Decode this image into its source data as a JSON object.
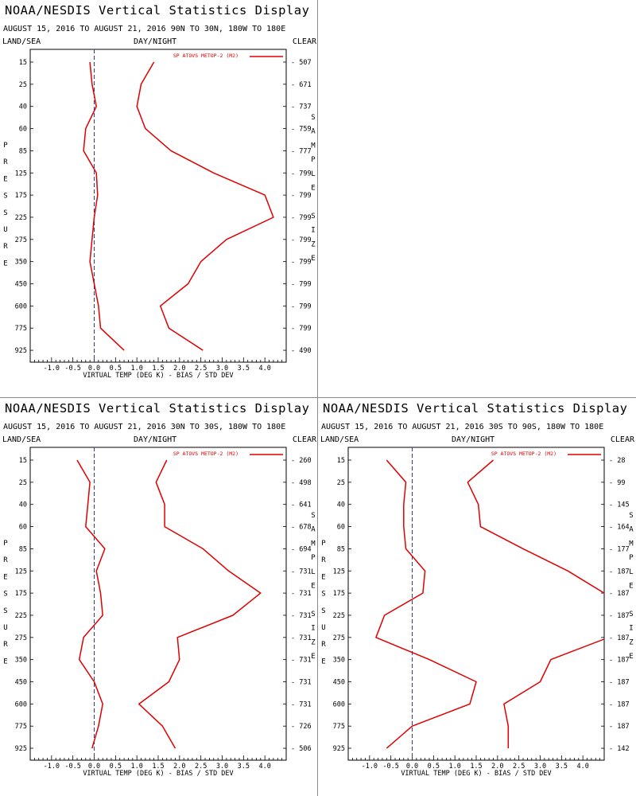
{
  "layout_labels": {
    "land_sea": "LAND/SEA",
    "day_night": "DAY/NIGHT",
    "clear": "CLEAR",
    "pressure_axis_letters": [
      "P",
      "R",
      "E",
      "S",
      "S",
      "U",
      "R",
      "E"
    ],
    "sample_size_letters": [
      "S",
      "A",
      "M",
      "P",
      "L",
      "E",
      "",
      "S",
      "I",
      "Z",
      "E"
    ]
  },
  "colors": {
    "series": "#e00000",
    "zero_line": "#3a3a8a",
    "axis": "#000000"
  },
  "chart_data": [
    {
      "type": "line",
      "title": "NOAA/NESDIS Vertical Statistics Display",
      "subtitle": "AUGUST 15, 2016 TO AUGUST 21, 2016  90N TO 30N, 180W TO 180E",
      "xlabel": "VIRTUAL TEMP (DEG K) - BIAS / STD DEV",
      "ylabel": "PRESSURE",
      "xlim": [
        -1.5,
        4.5
      ],
      "x_ticks": [
        "-1.0",
        "-0.5",
        "0.0",
        "0.5",
        "1.0",
        "1.5",
        "2.0",
        "2.5",
        "3.0",
        "3.5",
        "4.0"
      ],
      "pressure_levels": [
        "15",
        "25",
        "40",
        "60",
        "85",
        "125",
        "175",
        "225",
        "275",
        "350",
        "450",
        "600",
        "775",
        "925"
      ],
      "sample_size": [
        "507",
        "671",
        "737",
        "759",
        "777",
        "799",
        "799",
        "799",
        "799",
        "799",
        "799",
        "799",
        "799",
        "490"
      ],
      "legend": "SP ATOVS METOP-2 (M2)",
      "series": [
        {
          "name": "bias",
          "values": [
            -0.1,
            -0.05,
            0.05,
            -0.2,
            -0.25,
            0.05,
            0.08,
            0.0,
            -0.05,
            -0.1,
            0.0,
            0.1,
            0.15,
            0.7
          ]
        },
        {
          "name": "std dev",
          "values": [
            1.4,
            1.1,
            1.0,
            1.2,
            1.8,
            2.8,
            4.0,
            4.2,
            3.1,
            2.5,
            2.2,
            1.55,
            1.75,
            2.55
          ]
        }
      ]
    },
    {
      "type": "line",
      "title": "NOAA/NESDIS Vertical Statistics Display",
      "subtitle": "AUGUST 15, 2016 TO AUGUST 21, 2016  30N TO 30S, 180W TO 180E",
      "xlabel": "VIRTUAL TEMP (DEG K) - BIAS / STD DEV",
      "ylabel": "PRESSURE",
      "xlim": [
        -1.5,
        4.5
      ],
      "x_ticks": [
        "-1.0",
        "-0.5",
        "0.0",
        "0.5",
        "1.0",
        "1.5",
        "2.0",
        "2.5",
        "3.0",
        "3.5",
        "4.0"
      ],
      "pressure_levels": [
        "15",
        "25",
        "40",
        "60",
        "85",
        "125",
        "175",
        "225",
        "275",
        "350",
        "450",
        "600",
        "775",
        "925"
      ],
      "sample_size": [
        "260",
        "498",
        "641",
        "678",
        "694",
        "731",
        "731",
        "731",
        "731",
        "731",
        "731",
        "731",
        "726",
        "506"
      ],
      "legend": "SP ATOVS METOP-2 (M2)",
      "series": [
        {
          "name": "bias",
          "values": [
            -0.4,
            -0.1,
            -0.15,
            -0.2,
            0.25,
            0.05,
            0.15,
            0.2,
            -0.25,
            -0.35,
            0.0,
            0.2,
            0.1,
            -0.05
          ]
        },
        {
          "name": "std dev",
          "values": [
            1.7,
            1.45,
            1.65,
            1.65,
            2.55,
            3.15,
            3.9,
            3.25,
            1.95,
            2.0,
            1.75,
            1.05,
            1.6,
            1.9
          ]
        }
      ]
    },
    {
      "type": "line",
      "title": "NOAA/NESDIS Vertical Statistics Display",
      "subtitle": "AUGUST 15, 2016 TO AUGUST 21, 2016  30S TO 90S, 180W TO 180E",
      "xlabel": "VIRTUAL TEMP (DEG K) - BIAS / STD DEV",
      "ylabel": "PRESSURE",
      "xlim": [
        -1.5,
        4.5
      ],
      "x_ticks": [
        "-1.0",
        "-0.5",
        "0.0",
        "0.5",
        "1.0",
        "1.5",
        "2.0",
        "2.5",
        "3.0",
        "3.5",
        "4.0"
      ],
      "pressure_levels": [
        "15",
        "25",
        "40",
        "60",
        "85",
        "125",
        "175",
        "225",
        "275",
        "350",
        "450",
        "600",
        "775",
        "925"
      ],
      "sample_size": [
        "28",
        "99",
        "145",
        "164",
        "177",
        "187",
        "187",
        "187",
        "187",
        "187",
        "187",
        "187",
        "187",
        "142"
      ],
      "legend": "SP ATOVS METOP-2 (M2)",
      "series": [
        {
          "name": "bias",
          "values": [
            -0.6,
            -0.15,
            -0.2,
            -0.2,
            -0.15,
            0.3,
            0.25,
            -0.65,
            -0.85,
            0.4,
            1.5,
            1.35,
            0.0,
            -0.6
          ]
        },
        {
          "name": "std dev",
          "values": [
            1.9,
            1.3,
            1.55,
            1.6,
            2.6,
            3.65,
            4.5,
            5.0,
            4.6,
            3.25,
            3.0,
            2.15,
            2.25,
            2.25
          ]
        }
      ]
    }
  ]
}
